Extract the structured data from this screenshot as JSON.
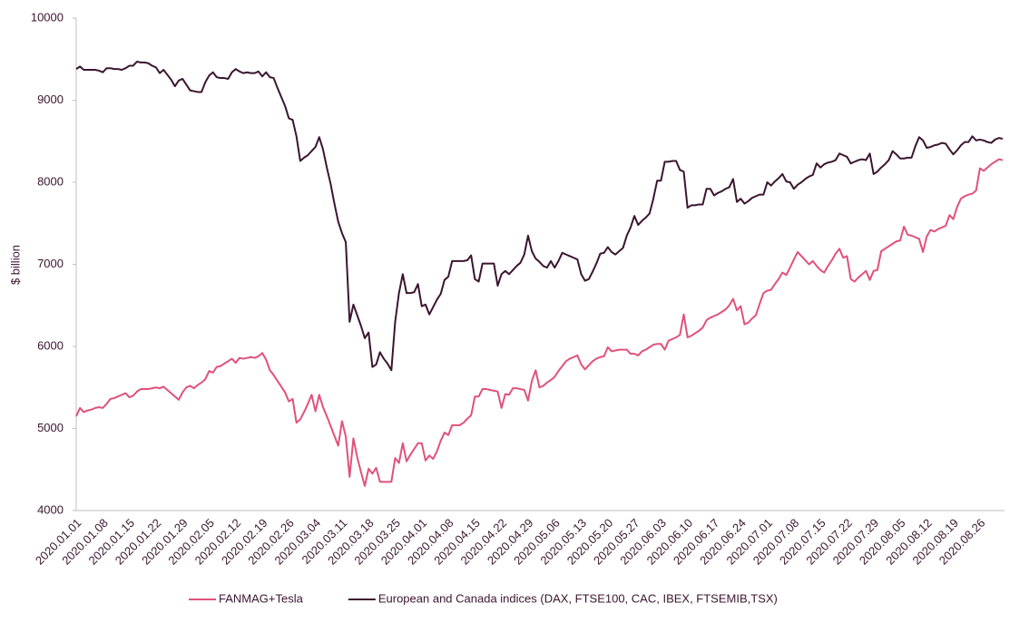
{
  "chart_data": {
    "type": "line",
    "y_label": "$ billion",
    "ylim": [
      4000,
      10000
    ],
    "yticks": [
      4000,
      5000,
      6000,
      7000,
      8000,
      9000,
      10000
    ],
    "grid": false,
    "legend": "bottom",
    "categories": [
      "2020.01.01",
      null,
      null,
      null,
      null,
      null,
      null,
      "2020.01.08",
      null,
      null,
      null,
      null,
      null,
      null,
      "2020.01.15",
      null,
      null,
      null,
      null,
      null,
      null,
      "2020.01.22",
      null,
      null,
      null,
      null,
      null,
      null,
      "2020.01.29",
      null,
      null,
      null,
      null,
      null,
      null,
      "2020.02.05",
      null,
      null,
      null,
      null,
      null,
      null,
      "2020.02.12",
      null,
      null,
      null,
      null,
      null,
      null,
      "2020.02.19",
      null,
      null,
      null,
      null,
      null,
      null,
      "2020.02.26",
      null,
      null,
      null,
      null,
      null,
      null,
      "2020.03.04",
      null,
      null,
      null,
      null,
      null,
      null,
      "2020.03.11",
      null,
      null,
      null,
      null,
      null,
      null,
      "2020.03.18",
      null,
      null,
      null,
      null,
      null,
      null,
      "2020.03.25",
      null,
      null,
      null,
      null,
      null,
      null,
      "2020.04.01",
      null,
      null,
      null,
      null,
      null,
      null,
      "2020.04.08",
      null,
      null,
      null,
      null,
      null,
      null,
      "2020.04.15",
      null,
      null,
      null,
      null,
      null,
      null,
      "2020.04.22",
      null,
      null,
      null,
      null,
      null,
      null,
      "2020.04.29",
      null,
      null,
      null,
      null,
      null,
      null,
      "2020.05.06",
      null,
      null,
      null,
      null,
      null,
      null,
      "2020.05.13",
      null,
      null,
      null,
      null,
      null,
      null,
      "2020.05.20",
      null,
      null,
      null,
      null,
      null,
      null,
      "2020.05.27",
      null,
      null,
      null,
      null,
      null,
      null,
      "2020.06.03",
      null,
      null,
      null,
      null,
      null,
      null,
      "2020.06.10",
      null,
      null,
      null,
      null,
      null,
      null,
      "2020.06.17",
      null,
      null,
      null,
      null,
      null,
      null,
      "2020.06.24",
      null,
      null,
      null,
      null,
      null,
      null,
      "2020.07.01",
      null,
      null,
      null,
      null,
      null,
      null,
      "2020.07.08",
      null,
      null,
      null,
      null,
      null,
      null,
      "2020.07.15",
      null,
      null,
      null,
      null,
      null,
      null,
      "2020.07.22",
      null,
      null,
      null,
      null,
      null,
      null,
      "2020.07.29",
      null,
      null,
      null,
      null,
      null,
      null,
      "2020.08.05",
      null,
      null,
      null,
      null,
      null,
      null,
      "2020.08.12",
      null,
      null,
      null,
      null,
      null,
      null,
      "2020.08.19",
      null,
      null,
      null,
      null,
      null,
      null,
      "2020.08.26",
      null,
      null,
      null,
      null,
      null,
      null
    ],
    "series": [
      {
        "name": "FANMAG+Tesla",
        "color": "#e0527a",
        "values": [
          5150,
          5250,
          5200,
          5220,
          5230,
          5250,
          5260,
          5250,
          5300,
          5360,
          5370,
          5390,
          5410,
          5430,
          5380,
          5400,
          5450,
          5480,
          5480,
          5480,
          5490,
          5500,
          5490,
          5510,
          5470,
          5430,
          5390,
          5350,
          5440,
          5500,
          5520,
          5490,
          5530,
          5560,
          5600,
          5700,
          5680,
          5750,
          5760,
          5790,
          5820,
          5850,
          5800,
          5860,
          5850,
          5860,
          5870,
          5860,
          5880,
          5920,
          5840,
          5710,
          5650,
          5580,
          5510,
          5440,
          5330,
          5360,
          5070,
          5110,
          5200,
          5300,
          5410,
          5210,
          5410,
          5260,
          5150,
          5030,
          4910,
          4790,
          5090,
          4900,
          4410,
          4880,
          4650,
          4470,
          4300,
          4510,
          4450,
          4520,
          4350,
          4350,
          4350,
          4350,
          4640,
          4580,
          4820,
          4600,
          4680,
          4750,
          4820,
          4820,
          4610,
          4670,
          4630,
          4720,
          4850,
          4950,
          4920,
          5040,
          5040,
          5040,
          5070,
          5120,
          5160,
          5390,
          5390,
          5480,
          5480,
          5470,
          5460,
          5450,
          5250,
          5420,
          5410,
          5490,
          5490,
          5480,
          5470,
          5340,
          5580,
          5710,
          5500,
          5520,
          5560,
          5590,
          5630,
          5700,
          5760,
          5820,
          5850,
          5870,
          5890,
          5780,
          5720,
          5770,
          5820,
          5850,
          5870,
          5880,
          5990,
          5940,
          5950,
          5960,
          5960,
          5960,
          5910,
          5910,
          5890,
          5940,
          5960,
          5990,
          6020,
          6030,
          6030,
          5960,
          6070,
          6090,
          6110,
          6140,
          6390,
          6110,
          6130,
          6160,
          6190,
          6230,
          6320,
          6350,
          6370,
          6390,
          6420,
          6450,
          6500,
          6580,
          6440,
          6490,
          6270,
          6290,
          6340,
          6380,
          6520,
          6650,
          6680,
          6690,
          6760,
          6820,
          6900,
          6870,
          6960,
          7060,
          7150,
          7100,
          7050,
          7000,
          7040,
          6980,
          6930,
          6900,
          6980,
          7050,
          7130,
          7190,
          7080,
          7100,
          6820,
          6790,
          6840,
          6880,
          6920,
          6810,
          6920,
          6930,
          7160,
          7190,
          7220,
          7250,
          7280,
          7290,
          7460,
          7360,
          7350,
          7330,
          7310,
          7150,
          7340,
          7420,
          7400,
          7430,
          7450,
          7470,
          7600,
          7550,
          7700,
          7800,
          7830,
          7850,
          7860,
          7900,
          8170,
          8140,
          8180,
          8220,
          8250,
          8280,
          8270
        ]
      },
      {
        "name": "European and Canada indices (DAX, FTSE100, CAC, IBEX, FTSEMIB,TSX)",
        "color": "#3b1530",
        "values": [
          9380,
          9410,
          9370,
          9370,
          9370,
          9370,
          9360,
          9340,
          9390,
          9390,
          9380,
          9380,
          9370,
          9390,
          9420,
          9420,
          9470,
          9460,
          9460,
          9450,
          9420,
          9400,
          9330,
          9370,
          9310,
          9250,
          9170,
          9240,
          9260,
          9190,
          9120,
          9110,
          9100,
          9100,
          9220,
          9300,
          9340,
          9280,
          9270,
          9270,
          9260,
          9340,
          9380,
          9350,
          9330,
          9340,
          9330,
          9330,
          9350,
          9290,
          9340,
          9280,
          9270,
          9150,
          9040,
          8930,
          8780,
          8760,
          8560,
          8260,
          8300,
          8330,
          8380,
          8430,
          8550,
          8400,
          8180,
          7980,
          7740,
          7520,
          7380,
          7270,
          6300,
          6510,
          6380,
          6250,
          6100,
          6170,
          5750,
          5780,
          5930,
          5850,
          5790,
          5710,
          6300,
          6650,
          6880,
          6650,
          6650,
          6660,
          6760,
          6490,
          6510,
          6390,
          6480,
          6570,
          6640,
          6810,
          6850,
          7040,
          7040,
          7040,
          7040,
          7050,
          7110,
          6820,
          6790,
          7010,
          7010,
          7010,
          7010,
          6740,
          6880,
          6920,
          6880,
          6930,
          6980,
          7020,
          7120,
          7350,
          7160,
          7070,
          7030,
          6980,
          6960,
          7040,
          6960,
          7040,
          7140,
          7120,
          7100,
          7080,
          7060,
          6880,
          6800,
          6820,
          6910,
          7010,
          7130,
          7140,
          7210,
          7150,
          7120,
          7160,
          7200,
          7350,
          7450,
          7590,
          7480,
          7530,
          7570,
          7620,
          7800,
          8020,
          8020,
          8250,
          8250,
          8260,
          8260,
          8150,
          8130,
          7690,
          7720,
          7720,
          7730,
          7730,
          7920,
          7920,
          7840,
          7870,
          7890,
          7920,
          7940,
          8040,
          7760,
          7800,
          7740,
          7770,
          7810,
          7830,
          7850,
          7850,
          8000,
          7960,
          8010,
          8050,
          8100,
          8010,
          8000,
          7920,
          7970,
          8000,
          8040,
          8070,
          8090,
          8230,
          8180,
          8220,
          8240,
          8250,
          8270,
          8350,
          8330,
          8310,
          8230,
          8250,
          8270,
          8280,
          8270,
          8350,
          8100,
          8130,
          8180,
          8220,
          8270,
          8380,
          8340,
          8290,
          8290,
          8300,
          8300,
          8440,
          8550,
          8510,
          8420,
          8430,
          8450,
          8460,
          8480,
          8470,
          8400,
          8340,
          8390,
          8450,
          8490,
          8490,
          8560,
          8510,
          8520,
          8510,
          8490,
          8480,
          8520,
          8540,
          8530
        ]
      }
    ]
  }
}
